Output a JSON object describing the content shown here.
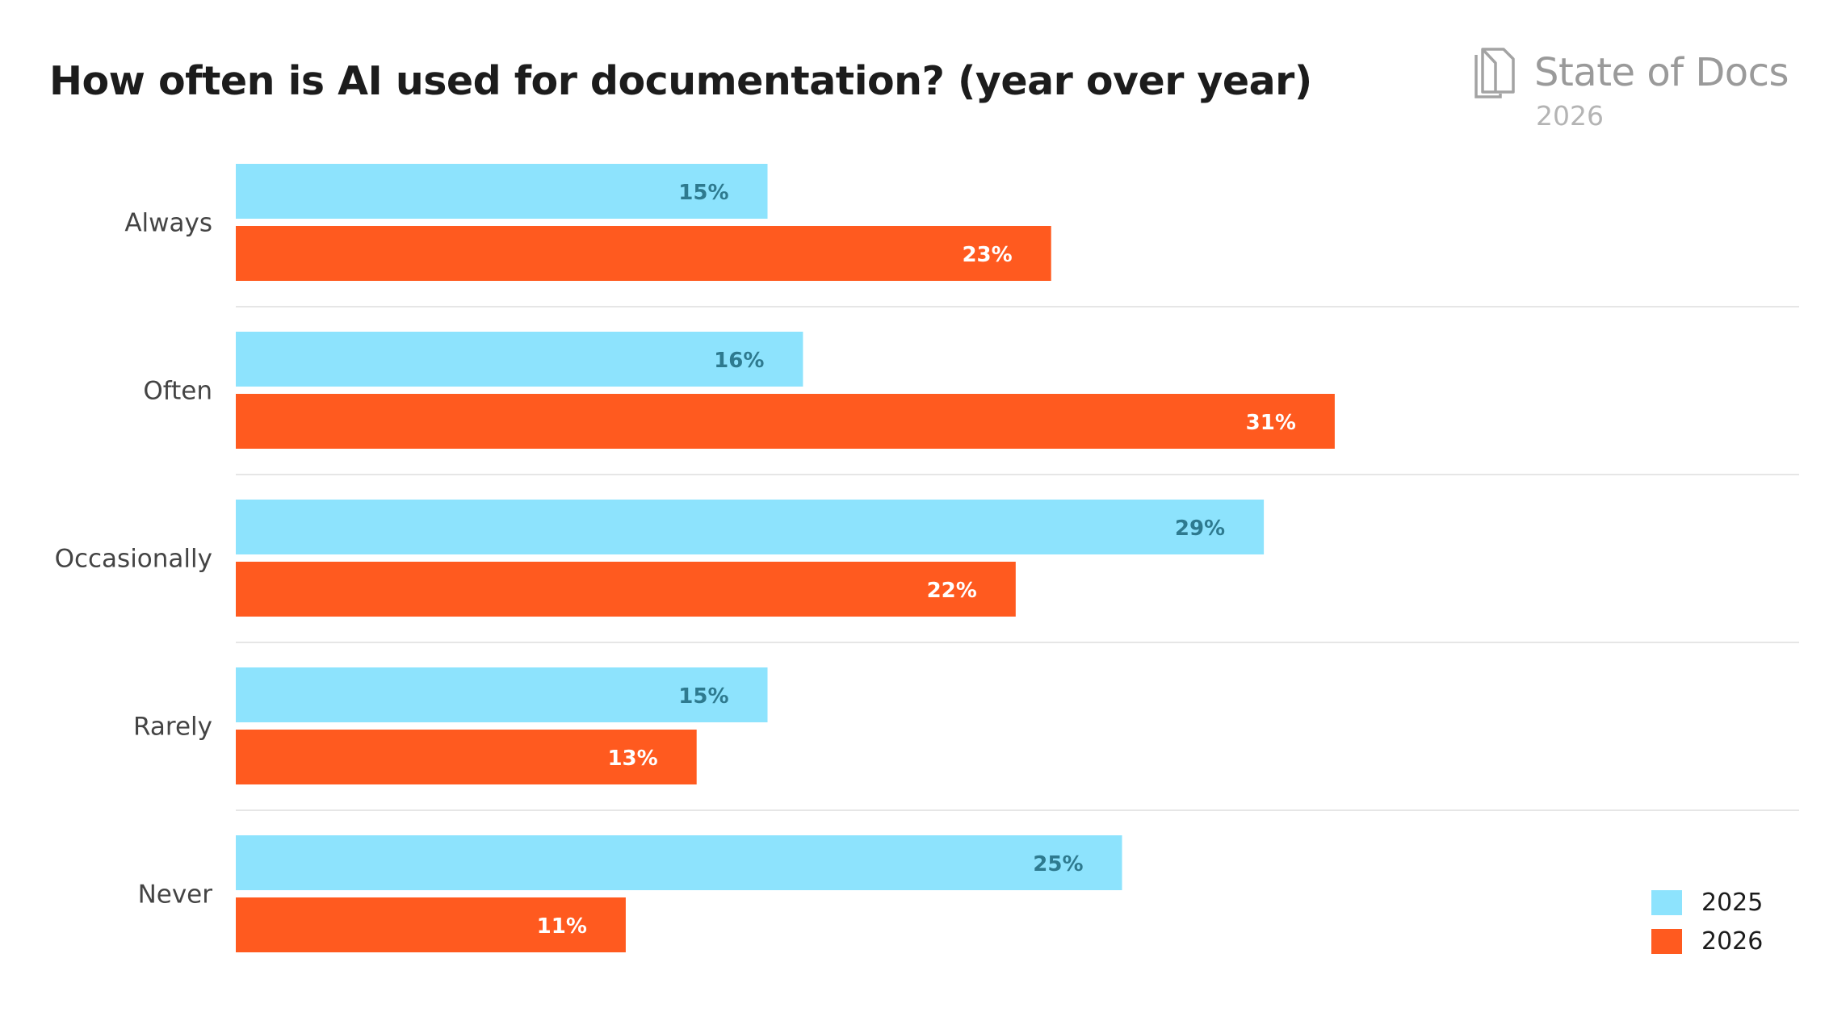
{
  "chart_data": {
    "type": "bar",
    "orientation": "horizontal",
    "title": "How often is AI used for documentation? (year over year)",
    "categories": [
      "Always",
      "Often",
      "Occasionally",
      "Rarely",
      "Never"
    ],
    "series": [
      {
        "name": "2025",
        "color": "#8de3fd",
        "label_color": "#2e7a8f",
        "values": [
          15,
          16,
          29,
          15,
          25
        ]
      },
      {
        "name": "2026",
        "color": "#ff5a1f",
        "label_color": "#ffffff",
        "values": [
          23,
          31,
          22,
          13,
          11
        ]
      }
    ],
    "value_suffix": "%",
    "xlim": [
      0,
      32
    ],
    "grid": false,
    "legend_position": "bottom-right"
  },
  "brand": {
    "name": "State of Docs",
    "year": "2026",
    "icon": "document-stack-icon"
  }
}
